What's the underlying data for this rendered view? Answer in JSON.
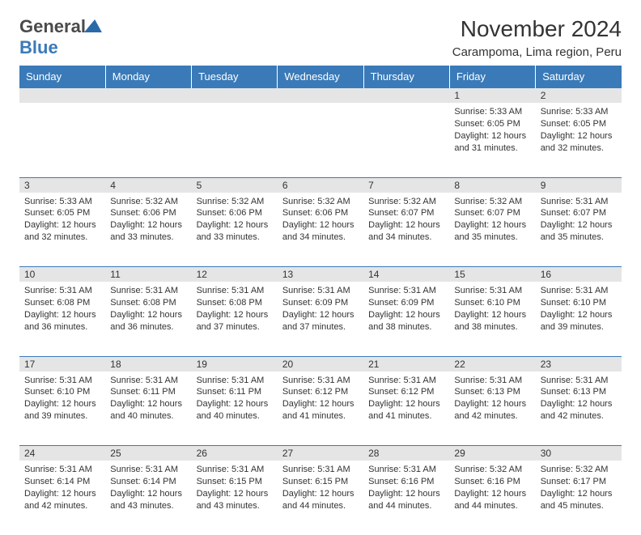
{
  "brand": {
    "part1": "General",
    "part2": "Blue"
  },
  "title": "November 2024",
  "subtitle": "Carampoma, Lima region, Peru",
  "header_bg": "#3a7ab8",
  "header_text": "#ffffff",
  "daynum_bg": "#e5e5e5",
  "border_color": "#3a7ab8",
  "font_family": "Arial",
  "title_fontsize": 28,
  "subtitle_fontsize": 15,
  "header_fontsize": 13,
  "daynum_fontsize": 12,
  "info_fontsize": 11,
  "weekdays": [
    "Sunday",
    "Monday",
    "Tuesday",
    "Wednesday",
    "Thursday",
    "Friday",
    "Saturday"
  ],
  "weeks": [
    {
      "days": [
        {
          "num": "",
          "sunrise": "",
          "sunset": "",
          "daylight1": "",
          "daylight2": ""
        },
        {
          "num": "",
          "sunrise": "",
          "sunset": "",
          "daylight1": "",
          "daylight2": ""
        },
        {
          "num": "",
          "sunrise": "",
          "sunset": "",
          "daylight1": "",
          "daylight2": ""
        },
        {
          "num": "",
          "sunrise": "",
          "sunset": "",
          "daylight1": "",
          "daylight2": ""
        },
        {
          "num": "",
          "sunrise": "",
          "sunset": "",
          "daylight1": "",
          "daylight2": ""
        },
        {
          "num": "1",
          "sunrise": "Sunrise: 5:33 AM",
          "sunset": "Sunset: 6:05 PM",
          "daylight1": "Daylight: 12 hours",
          "daylight2": "and 31 minutes."
        },
        {
          "num": "2",
          "sunrise": "Sunrise: 5:33 AM",
          "sunset": "Sunset: 6:05 PM",
          "daylight1": "Daylight: 12 hours",
          "daylight2": "and 32 minutes."
        }
      ]
    },
    {
      "days": [
        {
          "num": "3",
          "sunrise": "Sunrise: 5:33 AM",
          "sunset": "Sunset: 6:05 PM",
          "daylight1": "Daylight: 12 hours",
          "daylight2": "and 32 minutes."
        },
        {
          "num": "4",
          "sunrise": "Sunrise: 5:32 AM",
          "sunset": "Sunset: 6:06 PM",
          "daylight1": "Daylight: 12 hours",
          "daylight2": "and 33 minutes."
        },
        {
          "num": "5",
          "sunrise": "Sunrise: 5:32 AM",
          "sunset": "Sunset: 6:06 PM",
          "daylight1": "Daylight: 12 hours",
          "daylight2": "and 33 minutes."
        },
        {
          "num": "6",
          "sunrise": "Sunrise: 5:32 AM",
          "sunset": "Sunset: 6:06 PM",
          "daylight1": "Daylight: 12 hours",
          "daylight2": "and 34 minutes."
        },
        {
          "num": "7",
          "sunrise": "Sunrise: 5:32 AM",
          "sunset": "Sunset: 6:07 PM",
          "daylight1": "Daylight: 12 hours",
          "daylight2": "and 34 minutes."
        },
        {
          "num": "8",
          "sunrise": "Sunrise: 5:32 AM",
          "sunset": "Sunset: 6:07 PM",
          "daylight1": "Daylight: 12 hours",
          "daylight2": "and 35 minutes."
        },
        {
          "num": "9",
          "sunrise": "Sunrise: 5:31 AM",
          "sunset": "Sunset: 6:07 PM",
          "daylight1": "Daylight: 12 hours",
          "daylight2": "and 35 minutes."
        }
      ]
    },
    {
      "days": [
        {
          "num": "10",
          "sunrise": "Sunrise: 5:31 AM",
          "sunset": "Sunset: 6:08 PM",
          "daylight1": "Daylight: 12 hours",
          "daylight2": "and 36 minutes."
        },
        {
          "num": "11",
          "sunrise": "Sunrise: 5:31 AM",
          "sunset": "Sunset: 6:08 PM",
          "daylight1": "Daylight: 12 hours",
          "daylight2": "and 36 minutes."
        },
        {
          "num": "12",
          "sunrise": "Sunrise: 5:31 AM",
          "sunset": "Sunset: 6:08 PM",
          "daylight1": "Daylight: 12 hours",
          "daylight2": "and 37 minutes."
        },
        {
          "num": "13",
          "sunrise": "Sunrise: 5:31 AM",
          "sunset": "Sunset: 6:09 PM",
          "daylight1": "Daylight: 12 hours",
          "daylight2": "and 37 minutes."
        },
        {
          "num": "14",
          "sunrise": "Sunrise: 5:31 AM",
          "sunset": "Sunset: 6:09 PM",
          "daylight1": "Daylight: 12 hours",
          "daylight2": "and 38 minutes."
        },
        {
          "num": "15",
          "sunrise": "Sunrise: 5:31 AM",
          "sunset": "Sunset: 6:10 PM",
          "daylight1": "Daylight: 12 hours",
          "daylight2": "and 38 minutes."
        },
        {
          "num": "16",
          "sunrise": "Sunrise: 5:31 AM",
          "sunset": "Sunset: 6:10 PM",
          "daylight1": "Daylight: 12 hours",
          "daylight2": "and 39 minutes."
        }
      ]
    },
    {
      "days": [
        {
          "num": "17",
          "sunrise": "Sunrise: 5:31 AM",
          "sunset": "Sunset: 6:10 PM",
          "daylight1": "Daylight: 12 hours",
          "daylight2": "and 39 minutes."
        },
        {
          "num": "18",
          "sunrise": "Sunrise: 5:31 AM",
          "sunset": "Sunset: 6:11 PM",
          "daylight1": "Daylight: 12 hours",
          "daylight2": "and 40 minutes."
        },
        {
          "num": "19",
          "sunrise": "Sunrise: 5:31 AM",
          "sunset": "Sunset: 6:11 PM",
          "daylight1": "Daylight: 12 hours",
          "daylight2": "and 40 minutes."
        },
        {
          "num": "20",
          "sunrise": "Sunrise: 5:31 AM",
          "sunset": "Sunset: 6:12 PM",
          "daylight1": "Daylight: 12 hours",
          "daylight2": "and 41 minutes."
        },
        {
          "num": "21",
          "sunrise": "Sunrise: 5:31 AM",
          "sunset": "Sunset: 6:12 PM",
          "daylight1": "Daylight: 12 hours",
          "daylight2": "and 41 minutes."
        },
        {
          "num": "22",
          "sunrise": "Sunrise: 5:31 AM",
          "sunset": "Sunset: 6:13 PM",
          "daylight1": "Daylight: 12 hours",
          "daylight2": "and 42 minutes."
        },
        {
          "num": "23",
          "sunrise": "Sunrise: 5:31 AM",
          "sunset": "Sunset: 6:13 PM",
          "daylight1": "Daylight: 12 hours",
          "daylight2": "and 42 minutes."
        }
      ]
    },
    {
      "days": [
        {
          "num": "24",
          "sunrise": "Sunrise: 5:31 AM",
          "sunset": "Sunset: 6:14 PM",
          "daylight1": "Daylight: 12 hours",
          "daylight2": "and 42 minutes."
        },
        {
          "num": "25",
          "sunrise": "Sunrise: 5:31 AM",
          "sunset": "Sunset: 6:14 PM",
          "daylight1": "Daylight: 12 hours",
          "daylight2": "and 43 minutes."
        },
        {
          "num": "26",
          "sunrise": "Sunrise: 5:31 AM",
          "sunset": "Sunset: 6:15 PM",
          "daylight1": "Daylight: 12 hours",
          "daylight2": "and 43 minutes."
        },
        {
          "num": "27",
          "sunrise": "Sunrise: 5:31 AM",
          "sunset": "Sunset: 6:15 PM",
          "daylight1": "Daylight: 12 hours",
          "daylight2": "and 44 minutes."
        },
        {
          "num": "28",
          "sunrise": "Sunrise: 5:31 AM",
          "sunset": "Sunset: 6:16 PM",
          "daylight1": "Daylight: 12 hours",
          "daylight2": "and 44 minutes."
        },
        {
          "num": "29",
          "sunrise": "Sunrise: 5:32 AM",
          "sunset": "Sunset: 6:16 PM",
          "daylight1": "Daylight: 12 hours",
          "daylight2": "and 44 minutes."
        },
        {
          "num": "30",
          "sunrise": "Sunrise: 5:32 AM",
          "sunset": "Sunset: 6:17 PM",
          "daylight1": "Daylight: 12 hours",
          "daylight2": "and 45 minutes."
        }
      ]
    }
  ]
}
